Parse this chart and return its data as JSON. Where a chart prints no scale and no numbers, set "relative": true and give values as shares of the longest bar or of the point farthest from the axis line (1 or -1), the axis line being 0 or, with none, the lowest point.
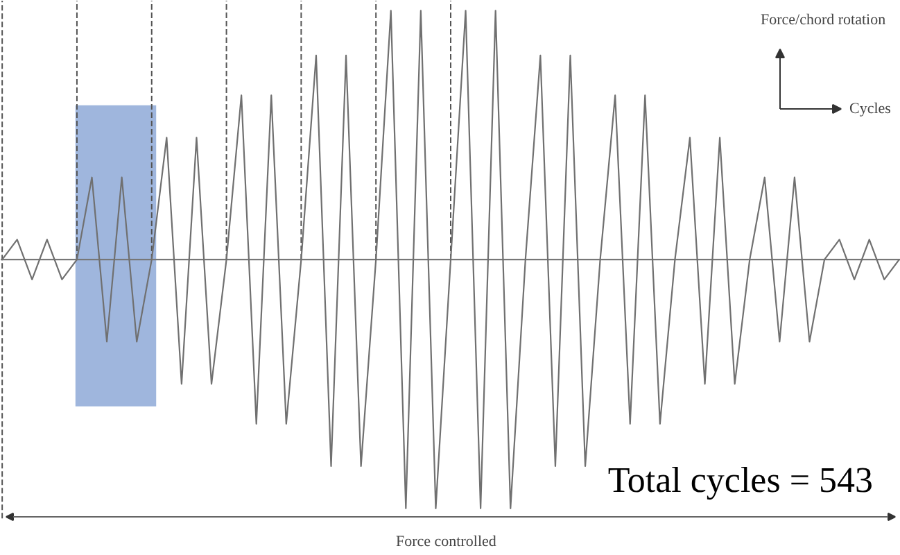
{
  "chart_data": {
    "type": "line",
    "relative": true,
    "xlabel": "Cycles",
    "ylabel": "Force/chord rotation",
    "categories": [
      null,
      null,
      null,
      null,
      null,
      null,
      null,
      null,
      null,
      null,
      null,
      null,
      null,
      null,
      null,
      null,
      null,
      null,
      null,
      null,
      null,
      null,
      null,
      null,
      null,
      null,
      null,
      null,
      null,
      null,
      null,
      null,
      null,
      null,
      null,
      null,
      null,
      null,
      null,
      null,
      null,
      null,
      null,
      null,
      null,
      null,
      null,
      null,
      null,
      null,
      null,
      null,
      null,
      null,
      null,
      null,
      null,
      null,
      null,
      null,
      null
    ],
    "series": [
      {
        "color": "#707070",
        "values": [
          0,
          0.08,
          -0.08,
          0.08,
          -0.08,
          0,
          0.33,
          -0.33,
          0.33,
          -0.33,
          0,
          0.49,
          -0.5,
          0.49,
          -0.5,
          0,
          0.66,
          -0.66,
          0.66,
          -0.66,
          0,
          0.82,
          -0.83,
          0.82,
          -0.83,
          0,
          1,
          -1,
          1,
          -1,
          0,
          1,
          -1,
          1,
          -1,
          0,
          0.82,
          -0.83,
          0.82,
          -0.83,
          0,
          0.66,
          -0.66,
          0.66,
          -0.66,
          0,
          0.49,
          -0.5,
          0.49,
          -0.5,
          0,
          0.33,
          -0.33,
          0.33,
          -0.33,
          0,
          0.08,
          -0.08,
          0.08,
          -0.08,
          0
        ]
      }
    ],
    "annotations": [
      "Total cycles = 543",
      "Force controlled"
    ],
    "grid": false,
    "marker": "none",
    "line_style": "solid",
    "tick_labels": false
  }
}
